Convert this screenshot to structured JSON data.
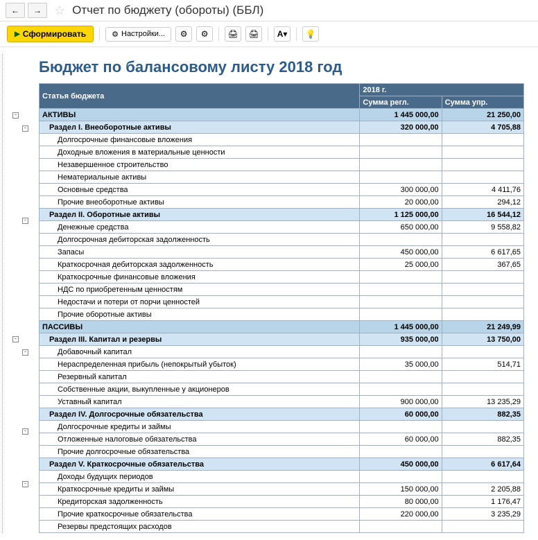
{
  "header": {
    "title": "Отчет по бюджету (обороты) (ББЛ)"
  },
  "toolbar": {
    "generate": "Сформировать",
    "settings": "Настройки..."
  },
  "report": {
    "title": "Бюджет по балансовому листу 2018 год",
    "columns": {
      "label": "Статья бюджета",
      "year": "2018 г.",
      "sum_regl": "Сумма регл.",
      "sum_upr": "Сумма упр."
    },
    "rows": [
      {
        "level": "top",
        "label": "АКТИВЫ",
        "regl": "1 445 000,00",
        "upr": "21 250,00",
        "exp": true,
        "expLevel": 0
      },
      {
        "level": "sec",
        "label": "Раздел I. Внеоборотные активы",
        "regl": "320 000,00",
        "upr": "4 705,88",
        "exp": true,
        "expLevel": 1
      },
      {
        "level": "item",
        "label": "Долгосрочные финансовые вложения",
        "regl": "",
        "upr": ""
      },
      {
        "level": "item",
        "label": "Доходные вложения в материальные ценности",
        "regl": "",
        "upr": ""
      },
      {
        "level": "item",
        "label": "Незавершенное строительство",
        "regl": "",
        "upr": ""
      },
      {
        "level": "item",
        "label": "Нематериальные активы",
        "regl": "",
        "upr": ""
      },
      {
        "level": "item",
        "label": "Основные средства",
        "regl": "300 000,00",
        "upr": "4 411,76"
      },
      {
        "level": "item",
        "label": "Прочие внеоборотные активы",
        "regl": "20 000,00",
        "upr": "294,12"
      },
      {
        "level": "sec",
        "label": "Раздел II. Оборотные активы",
        "regl": "1 125 000,00",
        "upr": "16 544,12",
        "exp": true,
        "expLevel": 1
      },
      {
        "level": "item",
        "label": "Денежные средства",
        "regl": "650 000,00",
        "upr": "9 558,82"
      },
      {
        "level": "item",
        "label": "Долгосрочная дебиторская задолженность",
        "regl": "",
        "upr": ""
      },
      {
        "level": "item",
        "label": "Запасы",
        "regl": "450 000,00",
        "upr": "6 617,65"
      },
      {
        "level": "item",
        "label": "Краткосрочная дебиторская задолженность",
        "regl": "25 000,00",
        "upr": "367,65"
      },
      {
        "level": "item",
        "label": "Краткосрочные финансовые вложения",
        "regl": "",
        "upr": ""
      },
      {
        "level": "item",
        "label": "НДС по приобретенным ценностям",
        "regl": "",
        "upr": ""
      },
      {
        "level": "item",
        "label": "Недостачи и потери от порчи ценностей",
        "regl": "",
        "upr": ""
      },
      {
        "level": "item",
        "label": "Прочие оборотные активы",
        "regl": "",
        "upr": ""
      },
      {
        "level": "top",
        "label": "ПАССИВЫ",
        "regl": "1 445 000,00",
        "upr": "21 249,99",
        "exp": true,
        "expLevel": 0
      },
      {
        "level": "sec",
        "label": "Раздел III. Капитал и резервы",
        "regl": "935 000,00",
        "upr": "13 750,00",
        "exp": true,
        "expLevel": 1
      },
      {
        "level": "item",
        "label": "Добавочный капитал",
        "regl": "",
        "upr": ""
      },
      {
        "level": "item",
        "label": "Нераспределенная прибыль (непокрытый убыток)",
        "regl": "35 000,00",
        "upr": "514,71"
      },
      {
        "level": "item",
        "label": "Резервный капитал",
        "regl": "",
        "upr": ""
      },
      {
        "level": "item",
        "label": "Собственные акции, выкупленные у акционеров",
        "regl": "",
        "upr": ""
      },
      {
        "level": "item",
        "label": "Уставный капитал",
        "regl": "900 000,00",
        "upr": "13 235,29"
      },
      {
        "level": "sec",
        "label": "Раздел IV.  Долгосрочные обязательства",
        "regl": "60 000,00",
        "upr": "882,35",
        "exp": true,
        "expLevel": 1
      },
      {
        "level": "item",
        "label": "Долгосрочные кредиты и займы",
        "regl": "",
        "upr": ""
      },
      {
        "level": "item",
        "label": "Отложенные налоговые обязательства",
        "regl": "60 000,00",
        "upr": "882,35"
      },
      {
        "level": "item",
        "label": "Прочие долгосрочные обязательства",
        "regl": "",
        "upr": ""
      },
      {
        "level": "sec",
        "label": "Раздел V. Краткосрочные обязательства",
        "regl": "450 000,00",
        "upr": "6 617,64",
        "exp": true,
        "expLevel": 1
      },
      {
        "level": "item",
        "label": "Доходы будущих периодов",
        "regl": "",
        "upr": ""
      },
      {
        "level": "item",
        "label": "Краткосрочные кредиты и займы",
        "regl": "150 000,00",
        "upr": "2 205,88"
      },
      {
        "level": "item",
        "label": "Кредиторская задолженность",
        "regl": "80 000,00",
        "upr": "1 176,47"
      },
      {
        "level": "item",
        "label": "Прочие краткосрочные обязательства",
        "regl": "220 000,00",
        "upr": "3 235,29"
      },
      {
        "level": "item",
        "label": "Резервы предстоящих расходов",
        "regl": "",
        "upr": ""
      }
    ]
  },
  "style": {
    "title_color": "#2e5c8a",
    "header_bg": "#4a6a8a",
    "header_fg": "#ffffff",
    "row_top_bg": "#b8d4e8",
    "row_sec_bg": "#d0e4f4",
    "row_item_bg": "#ffffff",
    "border_color": "#a0b0c0",
    "btn_yellow_bg": "#ffd700"
  }
}
